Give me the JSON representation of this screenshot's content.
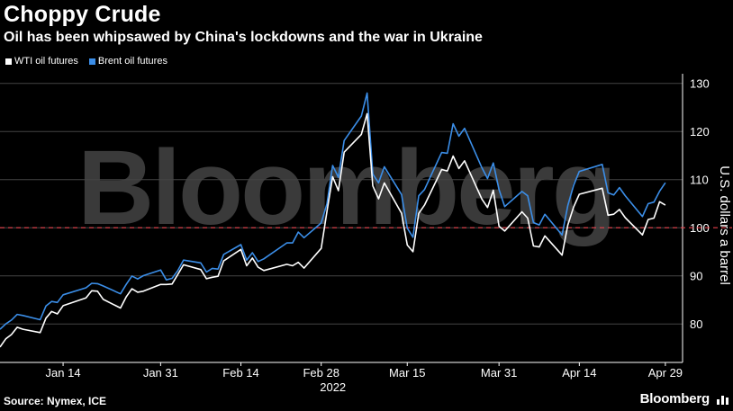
{
  "header": {
    "title": "Choppy Crude",
    "subtitle": "Oil has been whipsawed by China's lockdowns and the war in Ukraine"
  },
  "footer": {
    "source": "Source: Nymex, ICE",
    "brand": "Bloomberg"
  },
  "watermark": "Bloomberg",
  "colors": {
    "background": "#000000",
    "wti": "#ffffff",
    "brent": "#3b8ee8",
    "reference_line": "#e8414b",
    "grid": "#444444"
  },
  "chart_data": {
    "type": "line",
    "ylabel": "U.S. dollars a barrel",
    "xlabel": "2022",
    "ylim": [
      72,
      132
    ],
    "y_ticks": [
      80,
      90,
      100,
      110,
      120,
      130
    ],
    "x_tick_labels": [
      "Jan 14",
      "Jan 31",
      "Feb 14",
      "Feb 28",
      "Mar 15",
      "Mar 31",
      "Apr 14",
      "Apr 29"
    ],
    "x_tick_dates": [
      "2022-01-14",
      "2022-01-31",
      "2022-02-14",
      "2022-02-28",
      "2022-03-15",
      "2022-03-31",
      "2022-04-14",
      "2022-04-29"
    ],
    "x_range": [
      "2022-01-03",
      "2022-05-02"
    ],
    "grid": "horizontal",
    "reference_line": {
      "y": 100,
      "style": "dashed"
    },
    "legend_position": "top-left",
    "x": [
      "2022-01-03",
      "2022-01-04",
      "2022-01-05",
      "2022-01-06",
      "2022-01-07",
      "2022-01-10",
      "2022-01-11",
      "2022-01-12",
      "2022-01-13",
      "2022-01-14",
      "2022-01-18",
      "2022-01-19",
      "2022-01-20",
      "2022-01-21",
      "2022-01-24",
      "2022-01-25",
      "2022-01-26",
      "2022-01-27",
      "2022-01-28",
      "2022-01-31",
      "2022-02-01",
      "2022-02-02",
      "2022-02-03",
      "2022-02-04",
      "2022-02-07",
      "2022-02-08",
      "2022-02-09",
      "2022-02-10",
      "2022-02-11",
      "2022-02-14",
      "2022-02-15",
      "2022-02-16",
      "2022-02-17",
      "2022-02-18",
      "2022-02-22",
      "2022-02-23",
      "2022-02-24",
      "2022-02-25",
      "2022-02-28",
      "2022-03-01",
      "2022-03-02",
      "2022-03-03",
      "2022-03-04",
      "2022-03-07",
      "2022-03-08",
      "2022-03-09",
      "2022-03-10",
      "2022-03-11",
      "2022-03-14",
      "2022-03-15",
      "2022-03-16",
      "2022-03-17",
      "2022-03-18",
      "2022-03-21",
      "2022-03-22",
      "2022-03-23",
      "2022-03-24",
      "2022-03-25",
      "2022-03-28",
      "2022-03-29",
      "2022-03-30",
      "2022-03-31",
      "2022-04-01",
      "2022-04-04",
      "2022-04-05",
      "2022-04-06",
      "2022-04-07",
      "2022-04-08",
      "2022-04-11",
      "2022-04-12",
      "2022-04-13",
      "2022-04-14",
      "2022-04-18",
      "2022-04-19",
      "2022-04-20",
      "2022-04-21",
      "2022-04-22",
      "2022-04-25",
      "2022-04-26",
      "2022-04-27",
      "2022-04-28",
      "2022-04-29"
    ],
    "series": [
      {
        "name": "WTI oil futures",
        "color": "#ffffff",
        "values": [
          75.2,
          76.9,
          77.8,
          79.3,
          78.9,
          78.2,
          81.2,
          82.6,
          82.1,
          83.8,
          85.4,
          86.9,
          86.8,
          85.1,
          83.3,
          85.6,
          87.3,
          86.6,
          86.8,
          88.2,
          88.2,
          88.3,
          90.3,
          92.3,
          91.3,
          89.4,
          89.7,
          89.9,
          93.1,
          95.5,
          92.1,
          93.7,
          91.8,
          91.1,
          92.4,
          92.1,
          92.8,
          91.6,
          95.7,
          103.4,
          110.6,
          107.7,
          115.7,
          119.4,
          123.7,
          108.7,
          106.0,
          109.3,
          103.0,
          96.4,
          95.0,
          102.98,
          104.7,
          112.1,
          111.8,
          114.9,
          112.3,
          113.9,
          105.96,
          104.2,
          107.8,
          100.3,
          99.3,
          103.3,
          102.0,
          96.2,
          96.0,
          98.3,
          94.3,
          100.6,
          104.3,
          106.95,
          108.2,
          102.6,
          102.8,
          103.8,
          102.1,
          98.5,
          101.7,
          102.0,
          105.4,
          104.7
        ]
      },
      {
        "name": "Brent oil futures",
        "color": "#3b8ee8",
        "values": [
          78.9,
          80.0,
          80.8,
          81.99,
          81.75,
          80.87,
          83.72,
          84.67,
          84.47,
          86.06,
          87.51,
          88.44,
          88.38,
          87.89,
          86.27,
          88.2,
          89.96,
          89.34,
          90.03,
          91.21,
          89.16,
          89.47,
          91.11,
          93.27,
          92.69,
          90.78,
          91.55,
          91.41,
          94.44,
          96.48,
          93.28,
          94.81,
          92.97,
          93.54,
          96.84,
          96.84,
          99.08,
          97.93,
          100.99,
          104.97,
          112.93,
          110.46,
          118.11,
          123.21,
          127.98,
          111.14,
          109.33,
          112.67,
          106.9,
          99.91,
          98.02,
          106.64,
          107.93,
          115.62,
          115.48,
          121.6,
          119.03,
          120.65,
          112.48,
          110.23,
          113.45,
          107.91,
          104.39,
          107.53,
          106.64,
          101.07,
          100.58,
          102.78,
          98.48,
          104.64,
          108.78,
          111.7,
          113.16,
          107.25,
          106.8,
          108.33,
          106.65,
          102.32,
          104.99,
          105.32,
          107.59,
          109.34
        ]
      }
    ]
  }
}
